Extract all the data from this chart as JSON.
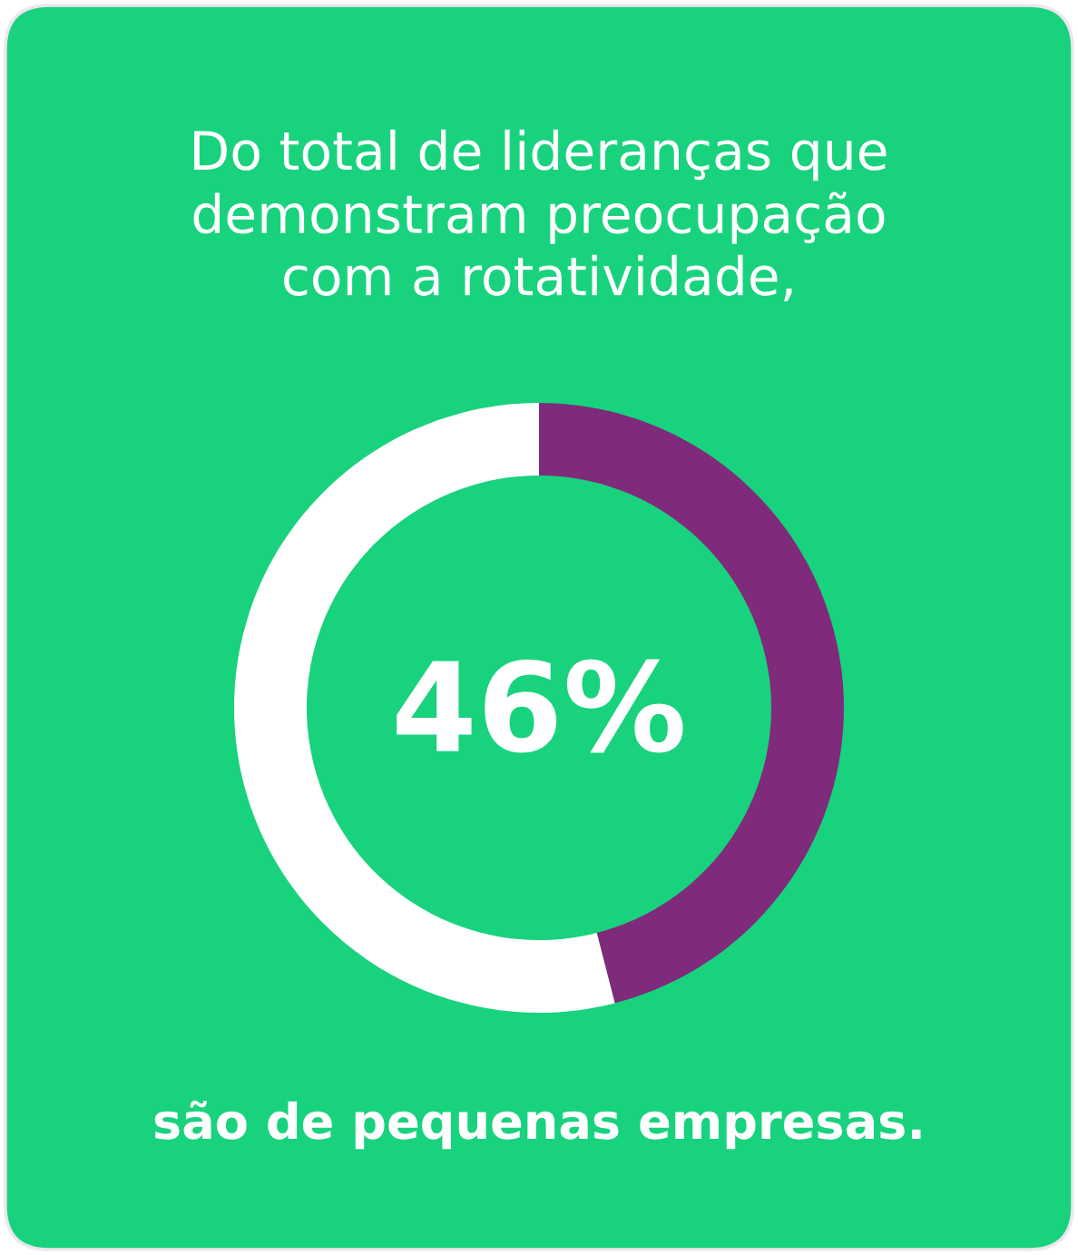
{
  "chart_data": {
    "type": "donut",
    "title": "Do total de lideranças que\ndemonstram preocupação\ncom a rotatividade,",
    "categories": [
      null,
      null
    ],
    "values": [
      46,
      54
    ],
    "colors": [
      "#7f2a7b",
      "#ffffff"
    ],
    "annotations": [
      "46%",
      "são de pequenas empresas."
    ]
  }
}
